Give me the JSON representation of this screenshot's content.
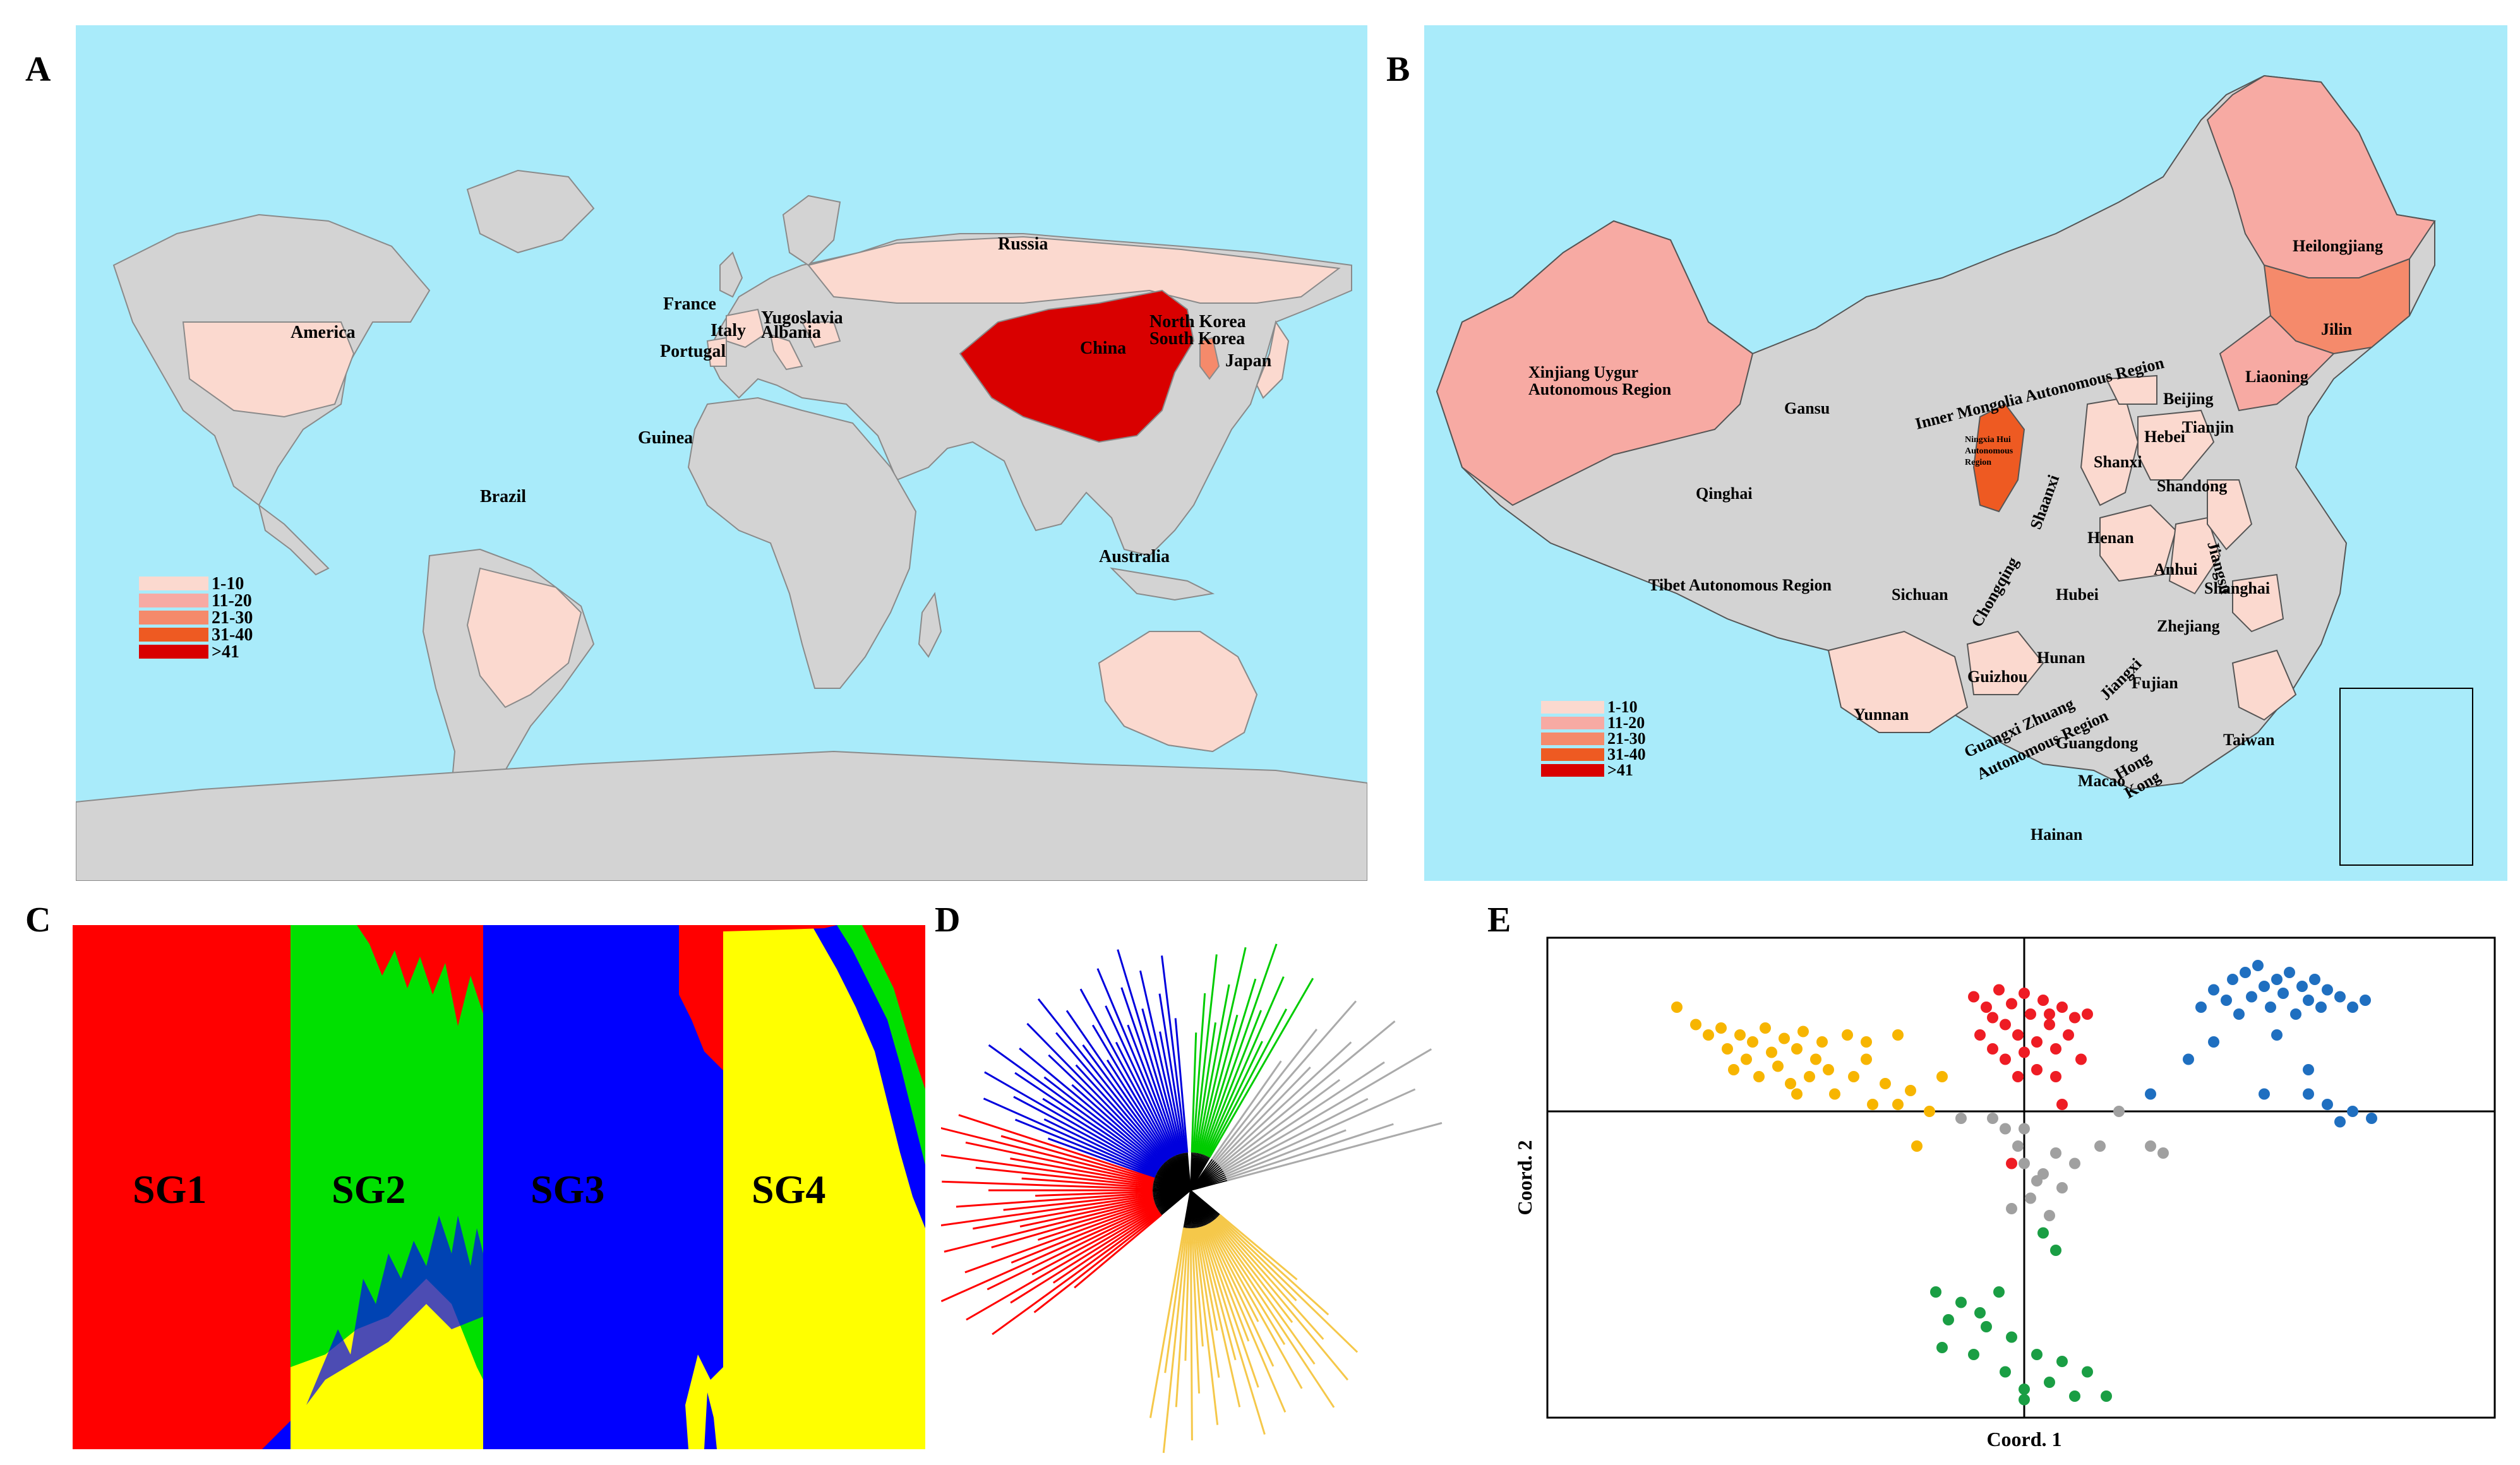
{
  "panels": {
    "A": {
      "label": "A",
      "countries": [
        "Russia",
        "France",
        "Yugoslavia",
        "Italy",
        "Albania",
        "Portugal",
        "America",
        "China",
        "North Korea",
        "South Korea",
        "Japan",
        "Guinea",
        "Brazil",
        "Australia"
      ],
      "legend": [
        "1-10",
        "11-20",
        "21-30",
        "31-40",
        ">41"
      ]
    },
    "B": {
      "label": "B",
      "provinces": [
        "Heilongjiang",
        "Jilin",
        "Liaoning",
        "Xinjiang Uygur",
        "Autonomous Region",
        "Inner Mongolia Autonomous Region",
        "Gansu",
        "Beijing",
        "Tianjin",
        "Hebei",
        "Ningxia Hui",
        "Autonomous",
        "Region",
        "Shanxi",
        "Shandong",
        "Qinghai",
        "Shaanxi",
        "Henan",
        "Jiangsu",
        "Anhui",
        "Shanghai",
        "Tibet Autonomous Region",
        "Sichuan",
        "Chongqing",
        "Hubei",
        "Zhejiang",
        "Guizhou",
        "Hunan",
        "Jiangxi",
        "Fujian",
        "Yunnan",
        "Guangxi Zhuang",
        "Autonomous Region",
        "Guangdong",
        "Taiwan",
        "Macao",
        "Hong",
        "Kong",
        "Hainan"
      ],
      "legend": [
        "1-10",
        "11-20",
        "21-30",
        "31-40",
        ">41"
      ]
    },
    "C": {
      "label": "C",
      "groups": [
        "SG1",
        "SG2",
        "SG3",
        "SG4"
      ]
    },
    "D": {
      "label": "D"
    },
    "E": {
      "label": "E",
      "xlabel": "Coord. 1",
      "ylabel": "Coord. 2"
    }
  },
  "colors": {
    "ocean": "#a9ebfa",
    "land": "#d3d3d3",
    "scale": [
      "#fbd9cf",
      "#f7aaa3",
      "#f58a6b",
      "#ee5a22",
      "#d90000"
    ],
    "sg1": "#ff0000",
    "sg2": "#00e000",
    "sg3": "#0000ff",
    "sg4": "#ffff00",
    "pcoa": {
      "red": "#ee1c24",
      "green": "#1a9e44",
      "blue": "#1f6fc0",
      "yellow": "#f7b500",
      "grey": "#a0a0a0"
    }
  },
  "chart_data": {
    "type": "scatter",
    "xlabel": "Coord. 1",
    "ylabel": "Coord. 2",
    "series": [
      {
        "color": "yellow",
        "points": [
          [
            -0.55,
            0.3
          ],
          [
            -0.52,
            0.25
          ],
          [
            -0.5,
            0.22
          ],
          [
            -0.48,
            0.24
          ],
          [
            -0.47,
            0.18
          ],
          [
            -0.45,
            0.22
          ],
          [
            -0.44,
            0.15
          ],
          [
            -0.43,
            0.2
          ],
          [
            -0.42,
            0.1
          ],
          [
            -0.41,
            0.24
          ],
          [
            -0.4,
            0.17
          ],
          [
            -0.39,
            0.13
          ],
          [
            -0.38,
            0.21
          ],
          [
            -0.37,
            0.08
          ],
          [
            -0.36,
            0.18
          ],
          [
            -0.35,
            0.23
          ],
          [
            -0.34,
            0.1
          ],
          [
            -0.33,
            0.15
          ],
          [
            -0.32,
            0.2
          ],
          [
            -0.31,
            0.12
          ],
          [
            -0.3,
            0.05
          ],
          [
            -0.28,
            0.22
          ],
          [
            -0.27,
            0.1
          ],
          [
            -0.25,
            0.15
          ],
          [
            -0.24,
            0.02
          ],
          [
            -0.22,
            0.08
          ],
          [
            -0.2,
            0.02
          ],
          [
            -0.18,
            0.06
          ],
          [
            -0.15,
            0.0
          ],
          [
            -0.13,
            0.1
          ],
          [
            -0.25,
            0.2
          ],
          [
            -0.2,
            0.22
          ],
          [
            -0.17,
            -0.1
          ],
          [
            -0.46,
            0.12
          ],
          [
            -0.36,
            0.05
          ]
        ]
      },
      {
        "color": "red",
        "points": [
          [
            -0.08,
            0.33
          ],
          [
            -0.06,
            0.3
          ],
          [
            -0.05,
            0.27
          ],
          [
            -0.04,
            0.35
          ],
          [
            -0.03,
            0.25
          ],
          [
            -0.02,
            0.31
          ],
          [
            -0.01,
            0.22
          ],
          [
            0.0,
            0.34
          ],
          [
            0.01,
            0.28
          ],
          [
            0.02,
            0.2
          ],
          [
            0.03,
            0.32
          ],
          [
            0.04,
            0.25
          ],
          [
            0.05,
            0.18
          ],
          [
            0.06,
            0.3
          ],
          [
            0.07,
            0.22
          ],
          [
            0.08,
            0.27
          ],
          [
            -0.07,
            0.22
          ],
          [
            -0.05,
            0.18
          ],
          [
            -0.03,
            0.15
          ],
          [
            0.0,
            0.17
          ],
          [
            0.02,
            0.12
          ],
          [
            0.05,
            0.1
          ],
          [
            -0.01,
            0.1
          ],
          [
            0.09,
            0.15
          ],
          [
            0.04,
            0.28
          ],
          [
            -0.02,
            -0.15
          ],
          [
            0.1,
            0.28
          ],
          [
            0.06,
            0.02
          ]
        ]
      },
      {
        "color": "blue",
        "points": [
          [
            0.28,
            0.3
          ],
          [
            0.3,
            0.35
          ],
          [
            0.32,
            0.32
          ],
          [
            0.33,
            0.38
          ],
          [
            0.35,
            0.4
          ],
          [
            0.36,
            0.33
          ],
          [
            0.37,
            0.42
          ],
          [
            0.38,
            0.36
          ],
          [
            0.39,
            0.3
          ],
          [
            0.4,
            0.38
          ],
          [
            0.41,
            0.34
          ],
          [
            0.42,
            0.4
          ],
          [
            0.43,
            0.28
          ],
          [
            0.44,
            0.36
          ],
          [
            0.45,
            0.32
          ],
          [
            0.46,
            0.38
          ],
          [
            0.47,
            0.3
          ],
          [
            0.48,
            0.35
          ],
          [
            0.5,
            0.33
          ],
          [
            0.52,
            0.3
          ],
          [
            0.54,
            0.32
          ],
          [
            0.34,
            0.28
          ],
          [
            0.3,
            0.2
          ],
          [
            0.26,
            0.15
          ],
          [
            0.4,
            0.22
          ],
          [
            0.45,
            0.05
          ],
          [
            0.48,
            0.02
          ],
          [
            0.5,
            -0.03
          ],
          [
            0.52,
            0.0
          ],
          [
            0.55,
            -0.02
          ],
          [
            0.45,
            0.12
          ],
          [
            0.38,
            0.05
          ],
          [
            0.2,
            0.05
          ]
        ]
      },
      {
        "color": "grey",
        "points": [
          [
            -0.1,
            -0.02
          ],
          [
            -0.03,
            -0.05
          ],
          [
            -0.01,
            -0.1
          ],
          [
            0.0,
            -0.15
          ],
          [
            0.02,
            -0.2
          ],
          [
            0.01,
            -0.25
          ],
          [
            0.03,
            -0.18
          ],
          [
            0.05,
            -0.12
          ],
          [
            0.06,
            -0.22
          ],
          [
            -0.02,
            -0.28
          ],
          [
            0.08,
            -0.15
          ],
          [
            0.04,
            -0.3
          ],
          [
            0.12,
            -0.1
          ],
          [
            0.15,
            0.0
          ],
          [
            0.2,
            -0.1
          ],
          [
            0.22,
            -0.12
          ],
          [
            -0.05,
            -0.02
          ],
          [
            0.0,
            -0.05
          ]
        ]
      },
      {
        "color": "green",
        "points": [
          [
            -0.14,
            -0.52
          ],
          [
            -0.12,
            -0.6
          ],
          [
            -0.1,
            -0.55
          ],
          [
            -0.08,
            -0.7
          ],
          [
            -0.06,
            -0.62
          ],
          [
            -0.04,
            -0.52
          ],
          [
            -0.03,
            -0.75
          ],
          [
            -0.02,
            -0.65
          ],
          [
            0.0,
            -0.8
          ],
          [
            0.02,
            -0.7
          ],
          [
            0.04,
            -0.78
          ],
          [
            0.06,
            -0.72
          ],
          [
            0.08,
            -0.82
          ],
          [
            0.1,
            -0.75
          ],
          [
            0.13,
            -0.82
          ],
          [
            -0.07,
            -0.58
          ],
          [
            0.03,
            -0.35
          ],
          [
            0.05,
            -0.4
          ],
          [
            0.0,
            -0.83
          ],
          [
            -0.13,
            -0.68
          ]
        ]
      }
    ]
  }
}
